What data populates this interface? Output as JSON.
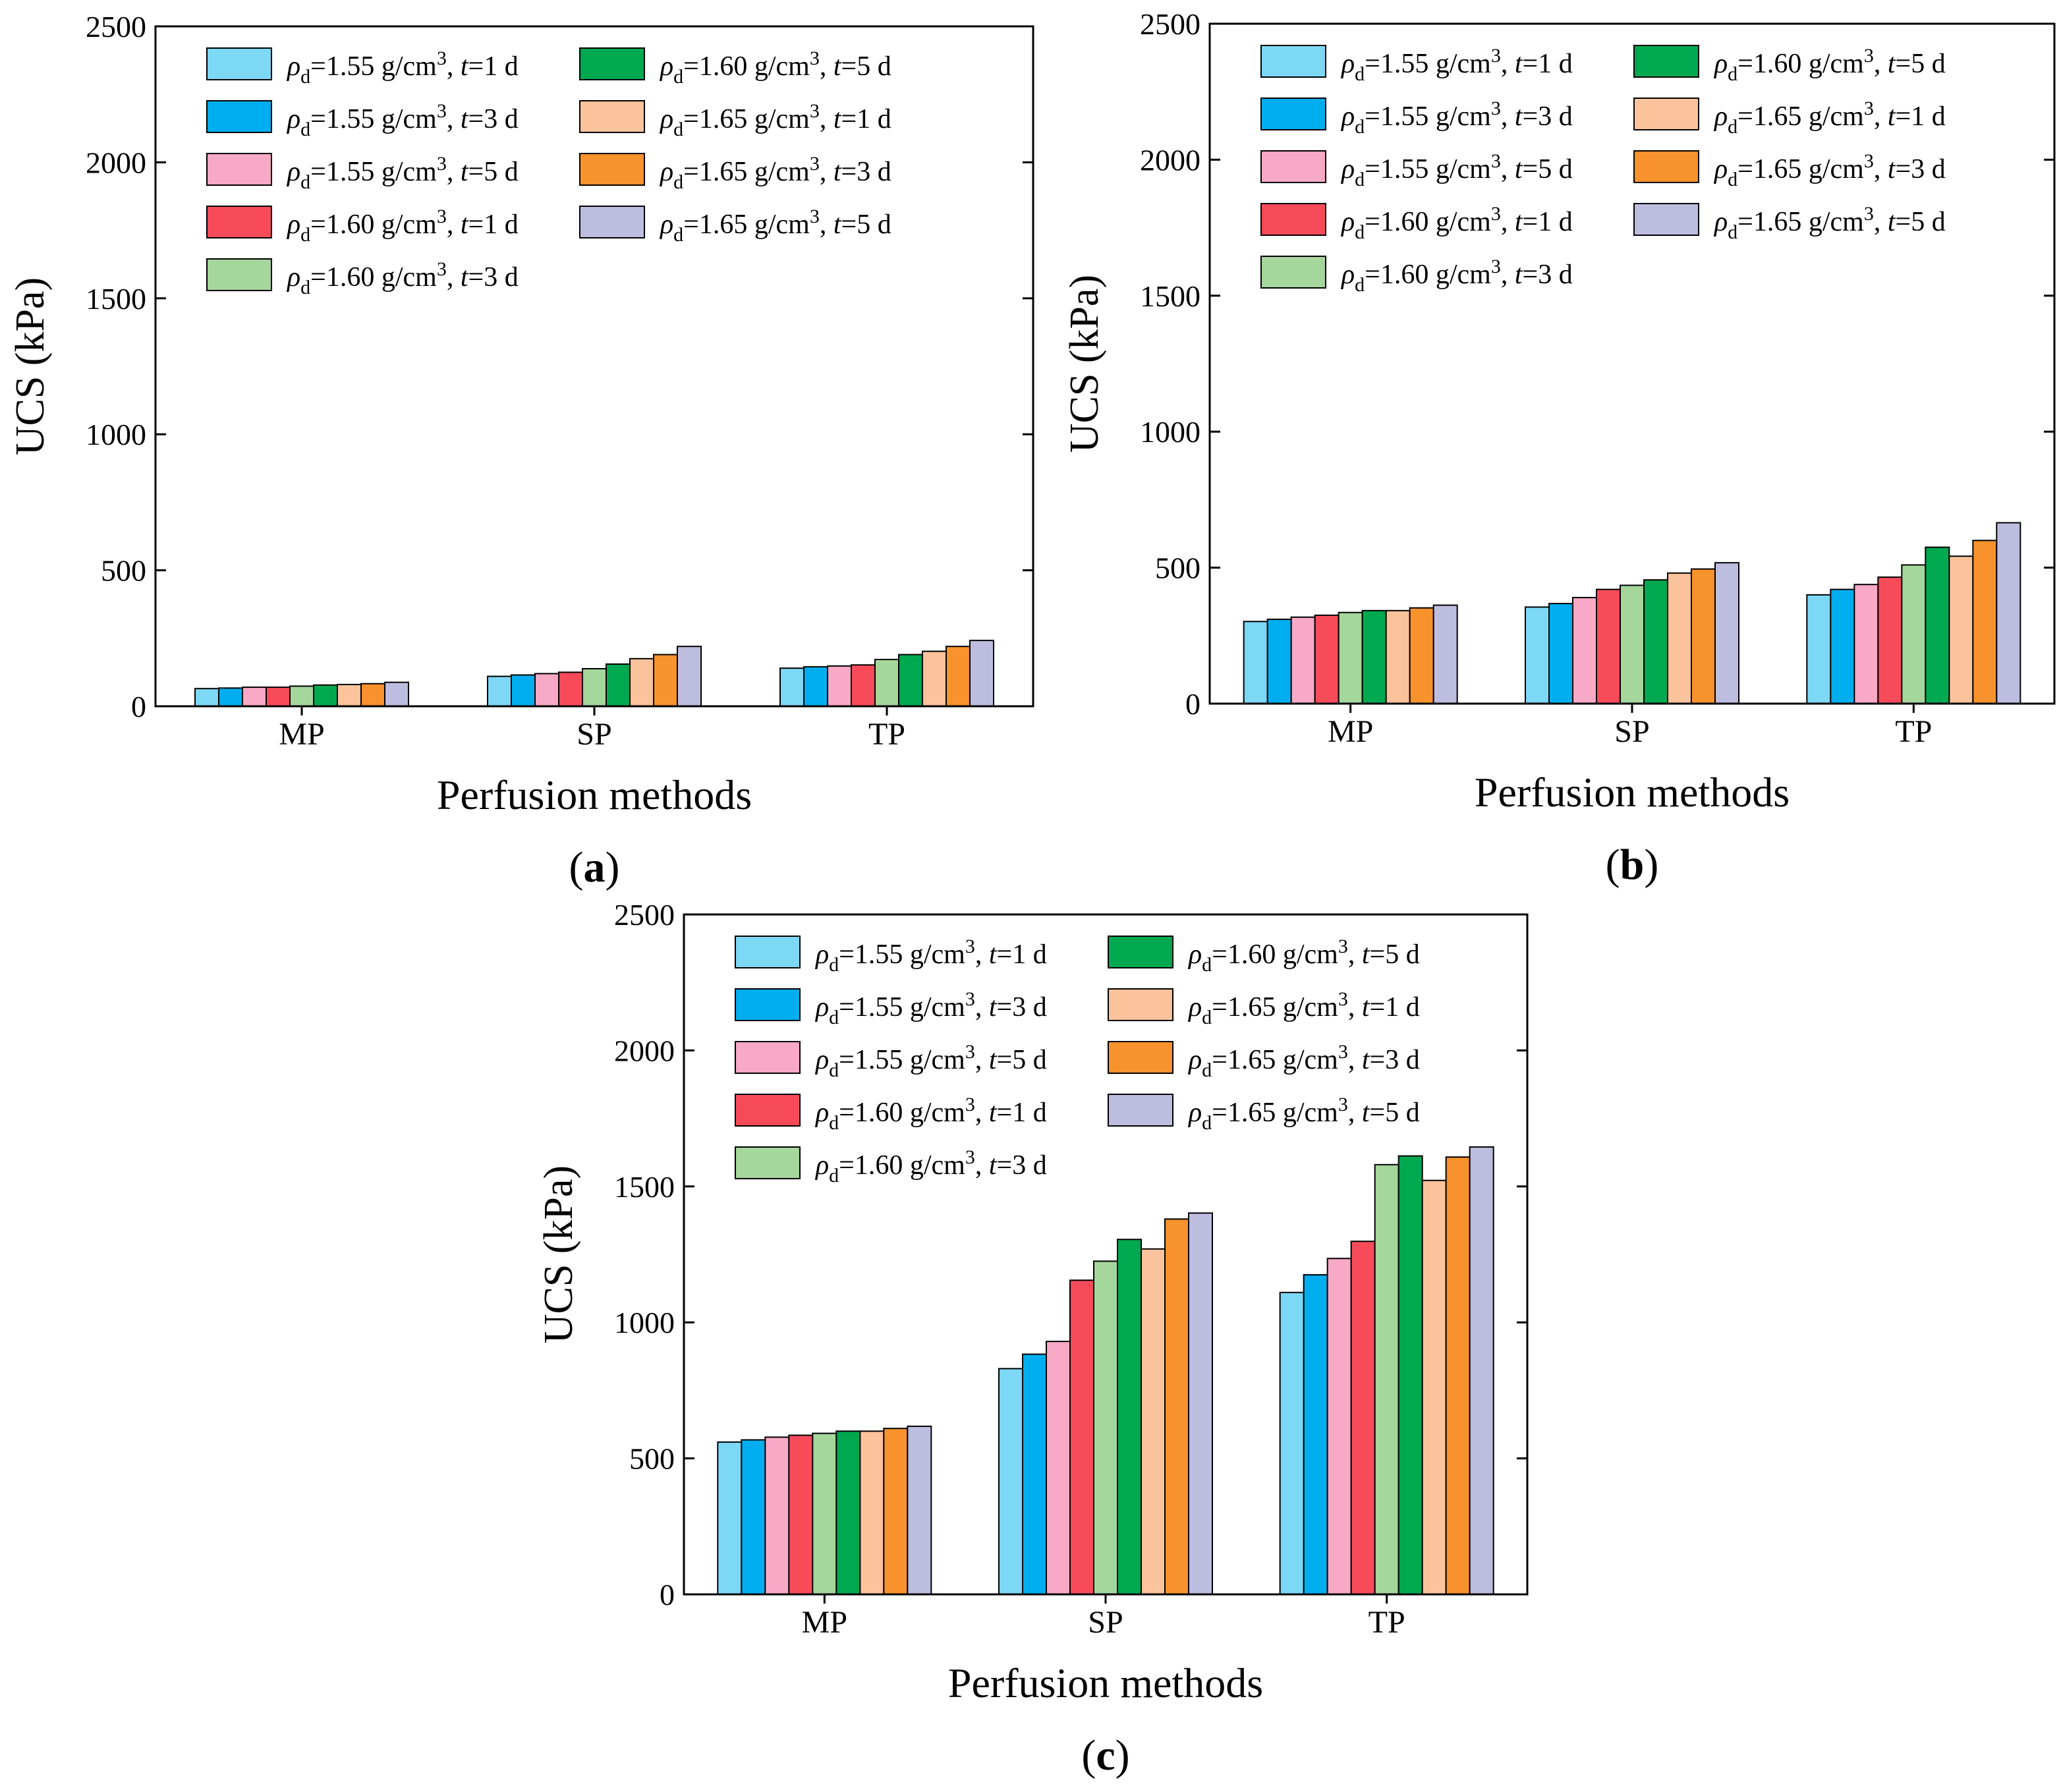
{
  "chart_data": [
    {
      "type": "bar",
      "panel_label": "(a)",
      "xlabel": "Perfusion methods",
      "ylabel": "UCS (kPa)",
      "ylim": [
        0,
        2500
      ],
      "yticks": [
        "0",
        "500",
        "1000",
        "1500",
        "2000",
        "2500"
      ],
      "categories": [
        "MP",
        "SP",
        "TP"
      ],
      "series_values": [
        [
          65,
          110,
          140
        ],
        [
          67,
          115,
          145
        ],
        [
          70,
          120,
          148
        ],
        [
          70,
          125,
          152
        ],
        [
          74,
          138,
          172
        ],
        [
          78,
          155,
          190
        ],
        [
          80,
          175,
          202
        ],
        [
          83,
          190,
          220
        ],
        [
          88,
          220,
          242
        ]
      ]
    },
    {
      "type": "bar",
      "panel_label": "(b)",
      "xlabel": "Perfusion methods",
      "ylabel": "UCS (kPa)",
      "ylim": [
        0,
        2500
      ],
      "yticks": [
        "0",
        "500",
        "1000",
        "1500",
        "2000",
        "2500"
      ],
      "categories": [
        "MP",
        "SP",
        "TP"
      ],
      "series_values": [
        [
          302,
          355,
          400
        ],
        [
          310,
          368,
          420
        ],
        [
          318,
          390,
          438
        ],
        [
          325,
          420,
          465
        ],
        [
          335,
          435,
          510
        ],
        [
          342,
          455,
          575
        ],
        [
          342,
          480,
          542
        ],
        [
          352,
          495,
          600
        ],
        [
          362,
          518,
          665
        ]
      ]
    },
    {
      "type": "bar",
      "panel_label": "(c)",
      "xlabel": "Perfusion methods",
      "ylabel": "UCS (kPa)",
      "ylim": [
        0,
        2500
      ],
      "yticks": [
        "0",
        "500",
        "1000",
        "1500",
        "2000",
        "2500"
      ],
      "categories": [
        "MP",
        "SP",
        "TP"
      ],
      "series_values": [
        [
          560,
          830,
          1110
        ],
        [
          568,
          883,
          1175
        ],
        [
          578,
          930,
          1235
        ],
        [
          585,
          1155,
          1298
        ],
        [
          592,
          1225,
          1580
        ],
        [
          600,
          1305,
          1612
        ],
        [
          600,
          1270,
          1522
        ],
        [
          610,
          1380,
          1608
        ],
        [
          618,
          1402,
          1645
        ]
      ]
    }
  ],
  "legend": [
    {
      "rho": "1.55 g/cm",
      "t": "1 d",
      "color": "#7DD8F6"
    },
    {
      "rho": "1.55 g/cm",
      "t": "3 d",
      "color": "#00AEEF"
    },
    {
      "rho": "1.55 g/cm",
      "t": "5 d",
      "color": "#F8A9C6"
    },
    {
      "rho": "1.60 g/cm",
      "t": "1 d",
      "color": "#F84B5A"
    },
    {
      "rho": "1.60 g/cm",
      "t": "3 d",
      "color": "#A5D69B"
    },
    {
      "rho": "1.60 g/cm",
      "t": "5 d",
      "color": "#00A94F"
    },
    {
      "rho": "1.65 g/cm",
      "t": "1 d",
      "color": "#FBC39B"
    },
    {
      "rho": "1.65 g/cm",
      "t": "3 d",
      "color": "#F8922C"
    },
    {
      "rho": "1.65 g/cm",
      "t": "5 d",
      "color": "#BDBDE0"
    }
  ],
  "legend_text": {
    "rho_symbol": "ρ",
    "rho_sub": "d",
    "equals": "=",
    "cube": "3",
    "t_symbol": "t",
    "separator": ", "
  }
}
